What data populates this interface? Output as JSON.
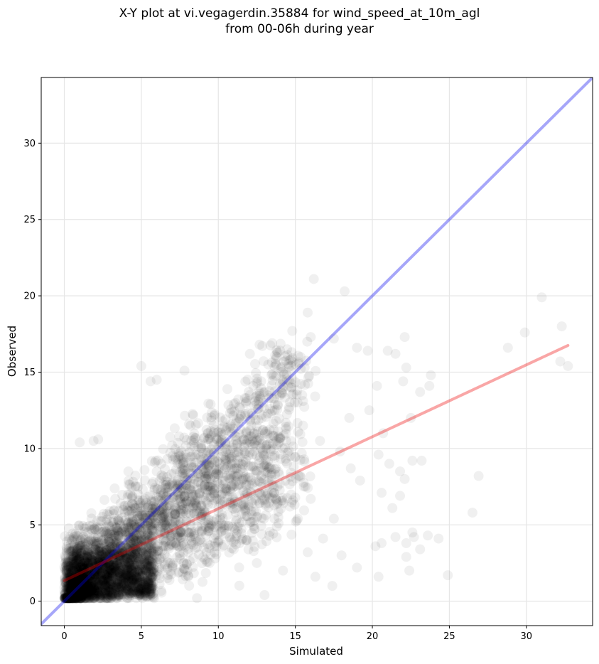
{
  "title_line1": "X-Y plot at vi.vegagerdin.35884 for wind_speed_at_10m_agl",
  "title_line2": "from 00-06h during year",
  "chart_data": {
    "type": "scatter",
    "title": "X-Y plot at vi.vegagerdin.35884 for wind_speed_at_10m_agl\nfrom 00-06h during year",
    "xlabel": "Simulated",
    "ylabel": "Observed",
    "xlim": [
      -1.5,
      34.3
    ],
    "ylim": [
      -1.6,
      34.3
    ],
    "xticks": [
      0,
      5,
      10,
      15,
      20,
      25,
      30
    ],
    "yticks": [
      0,
      5,
      10,
      15,
      20,
      25,
      30
    ],
    "grid": true,
    "legend": "none",
    "colors": {
      "points": "#000000",
      "identity_line": "#0000ee",
      "fit_line": "#ee0000"
    },
    "lines": [
      {
        "x": [
          -1.5,
          34.3
        ],
        "y": [
          -1.5,
          34.3
        ]
      },
      {
        "x": [
          0,
          32.7
        ],
        "y": [
          1.35,
          16.75
        ]
      }
    ],
    "points_sample": [
      [
        1.0,
        10.4
      ],
      [
        1.9,
        10.5
      ],
      [
        2.2,
        10.6
      ],
      [
        5.0,
        15.4
      ],
      [
        5.6,
        14.4
      ],
      [
        6.0,
        14.5
      ],
      [
        7.8,
        15.1
      ],
      [
        13.5,
        16.9
      ],
      [
        14.8,
        17.7
      ],
      [
        15.8,
        18.9
      ],
      [
        16.0,
        17.3
      ],
      [
        16.2,
        21.1
      ],
      [
        18.2,
        20.3
      ],
      [
        17.5,
        17.2
      ],
      [
        19.0,
        16.6
      ],
      [
        19.7,
        16.4
      ],
      [
        21.0,
        16.4
      ],
      [
        21.5,
        16.2
      ],
      [
        22.1,
        17.3
      ],
      [
        22.2,
        15.3
      ],
      [
        23.8,
        14.8
      ],
      [
        23.7,
        14.1
      ],
      [
        22.0,
        14.4
      ],
      [
        23.1,
        13.7
      ],
      [
        20.3,
        14.1
      ],
      [
        22.5,
        12.0
      ],
      [
        20.7,
        11.0
      ],
      [
        18.5,
        12.0
      ],
      [
        19.8,
        12.5
      ],
      [
        21.1,
        9.0
      ],
      [
        22.6,
        9.2
      ],
      [
        20.4,
        9.6
      ],
      [
        23.2,
        9.2
      ],
      [
        21.8,
        8.5
      ],
      [
        22.1,
        8.0
      ],
      [
        20.6,
        7.1
      ],
      [
        21.3,
        6.1
      ],
      [
        21.8,
        6.9
      ],
      [
        22.6,
        4.5
      ],
      [
        22.7,
        4.2
      ],
      [
        21.5,
        4.2
      ],
      [
        20.6,
        3.8
      ],
      [
        20.2,
        3.6
      ],
      [
        22.2,
        3.8
      ],
      [
        22.2,
        2.9
      ],
      [
        22.4,
        2.0
      ],
      [
        24.3,
        4.1
      ],
      [
        23.6,
        4.3
      ],
      [
        23.1,
        3.4
      ],
      [
        20.4,
        1.6
      ],
      [
        24.9,
        1.7
      ],
      [
        26.5,
        5.8
      ],
      [
        26.9,
        8.2
      ],
      [
        28.8,
        16.6
      ],
      [
        29.9,
        17.6
      ],
      [
        31.0,
        19.9
      ],
      [
        32.3,
        18.0
      ],
      [
        32.2,
        15.7
      ],
      [
        32.7,
        15.4
      ],
      [
        17.4,
        1.0
      ],
      [
        14.6,
        12.7
      ],
      [
        15.5,
        11.5
      ],
      [
        16.6,
        10.5
      ],
      [
        17.9,
        9.8
      ],
      [
        18.6,
        8.7
      ],
      [
        19.2,
        7.9
      ],
      [
        16.0,
        6.7
      ],
      [
        17.5,
        5.4
      ],
      [
        16.8,
        4.1
      ],
      [
        15.8,
        3.2
      ],
      [
        18.0,
        3.0
      ],
      [
        19.0,
        2.2
      ],
      [
        16.3,
        1.6
      ],
      [
        14.2,
        2.0
      ],
      [
        13.0,
        0.4
      ],
      [
        12.5,
        2.5
      ],
      [
        11.8,
        4.0
      ],
      [
        13.9,
        5.5
      ],
      [
        12.8,
        7.5
      ],
      [
        11.5,
        9.0
      ],
      [
        10.5,
        11.2
      ],
      [
        9.5,
        12.9
      ],
      [
        8.2,
        11.5
      ],
      [
        7.0,
        10.2
      ],
      [
        6.0,
        8.5
      ],
      [
        4.8,
        7.0
      ],
      [
        3.5,
        5.4
      ],
      [
        2.5,
        4.0
      ],
      [
        1.5,
        3.0
      ],
      [
        0.8,
        2.0
      ],
      [
        0.5,
        1.0
      ],
      [
        1.2,
        0.6
      ],
      [
        2.8,
        0.8
      ],
      [
        4.5,
        1.2
      ],
      [
        6.2,
        1.5
      ],
      [
        8.0,
        2.0
      ],
      [
        9.8,
        2.8
      ],
      [
        11.0,
        3.4
      ],
      [
        7.5,
        4.5
      ],
      [
        5.5,
        3.0
      ]
    ]
  }
}
